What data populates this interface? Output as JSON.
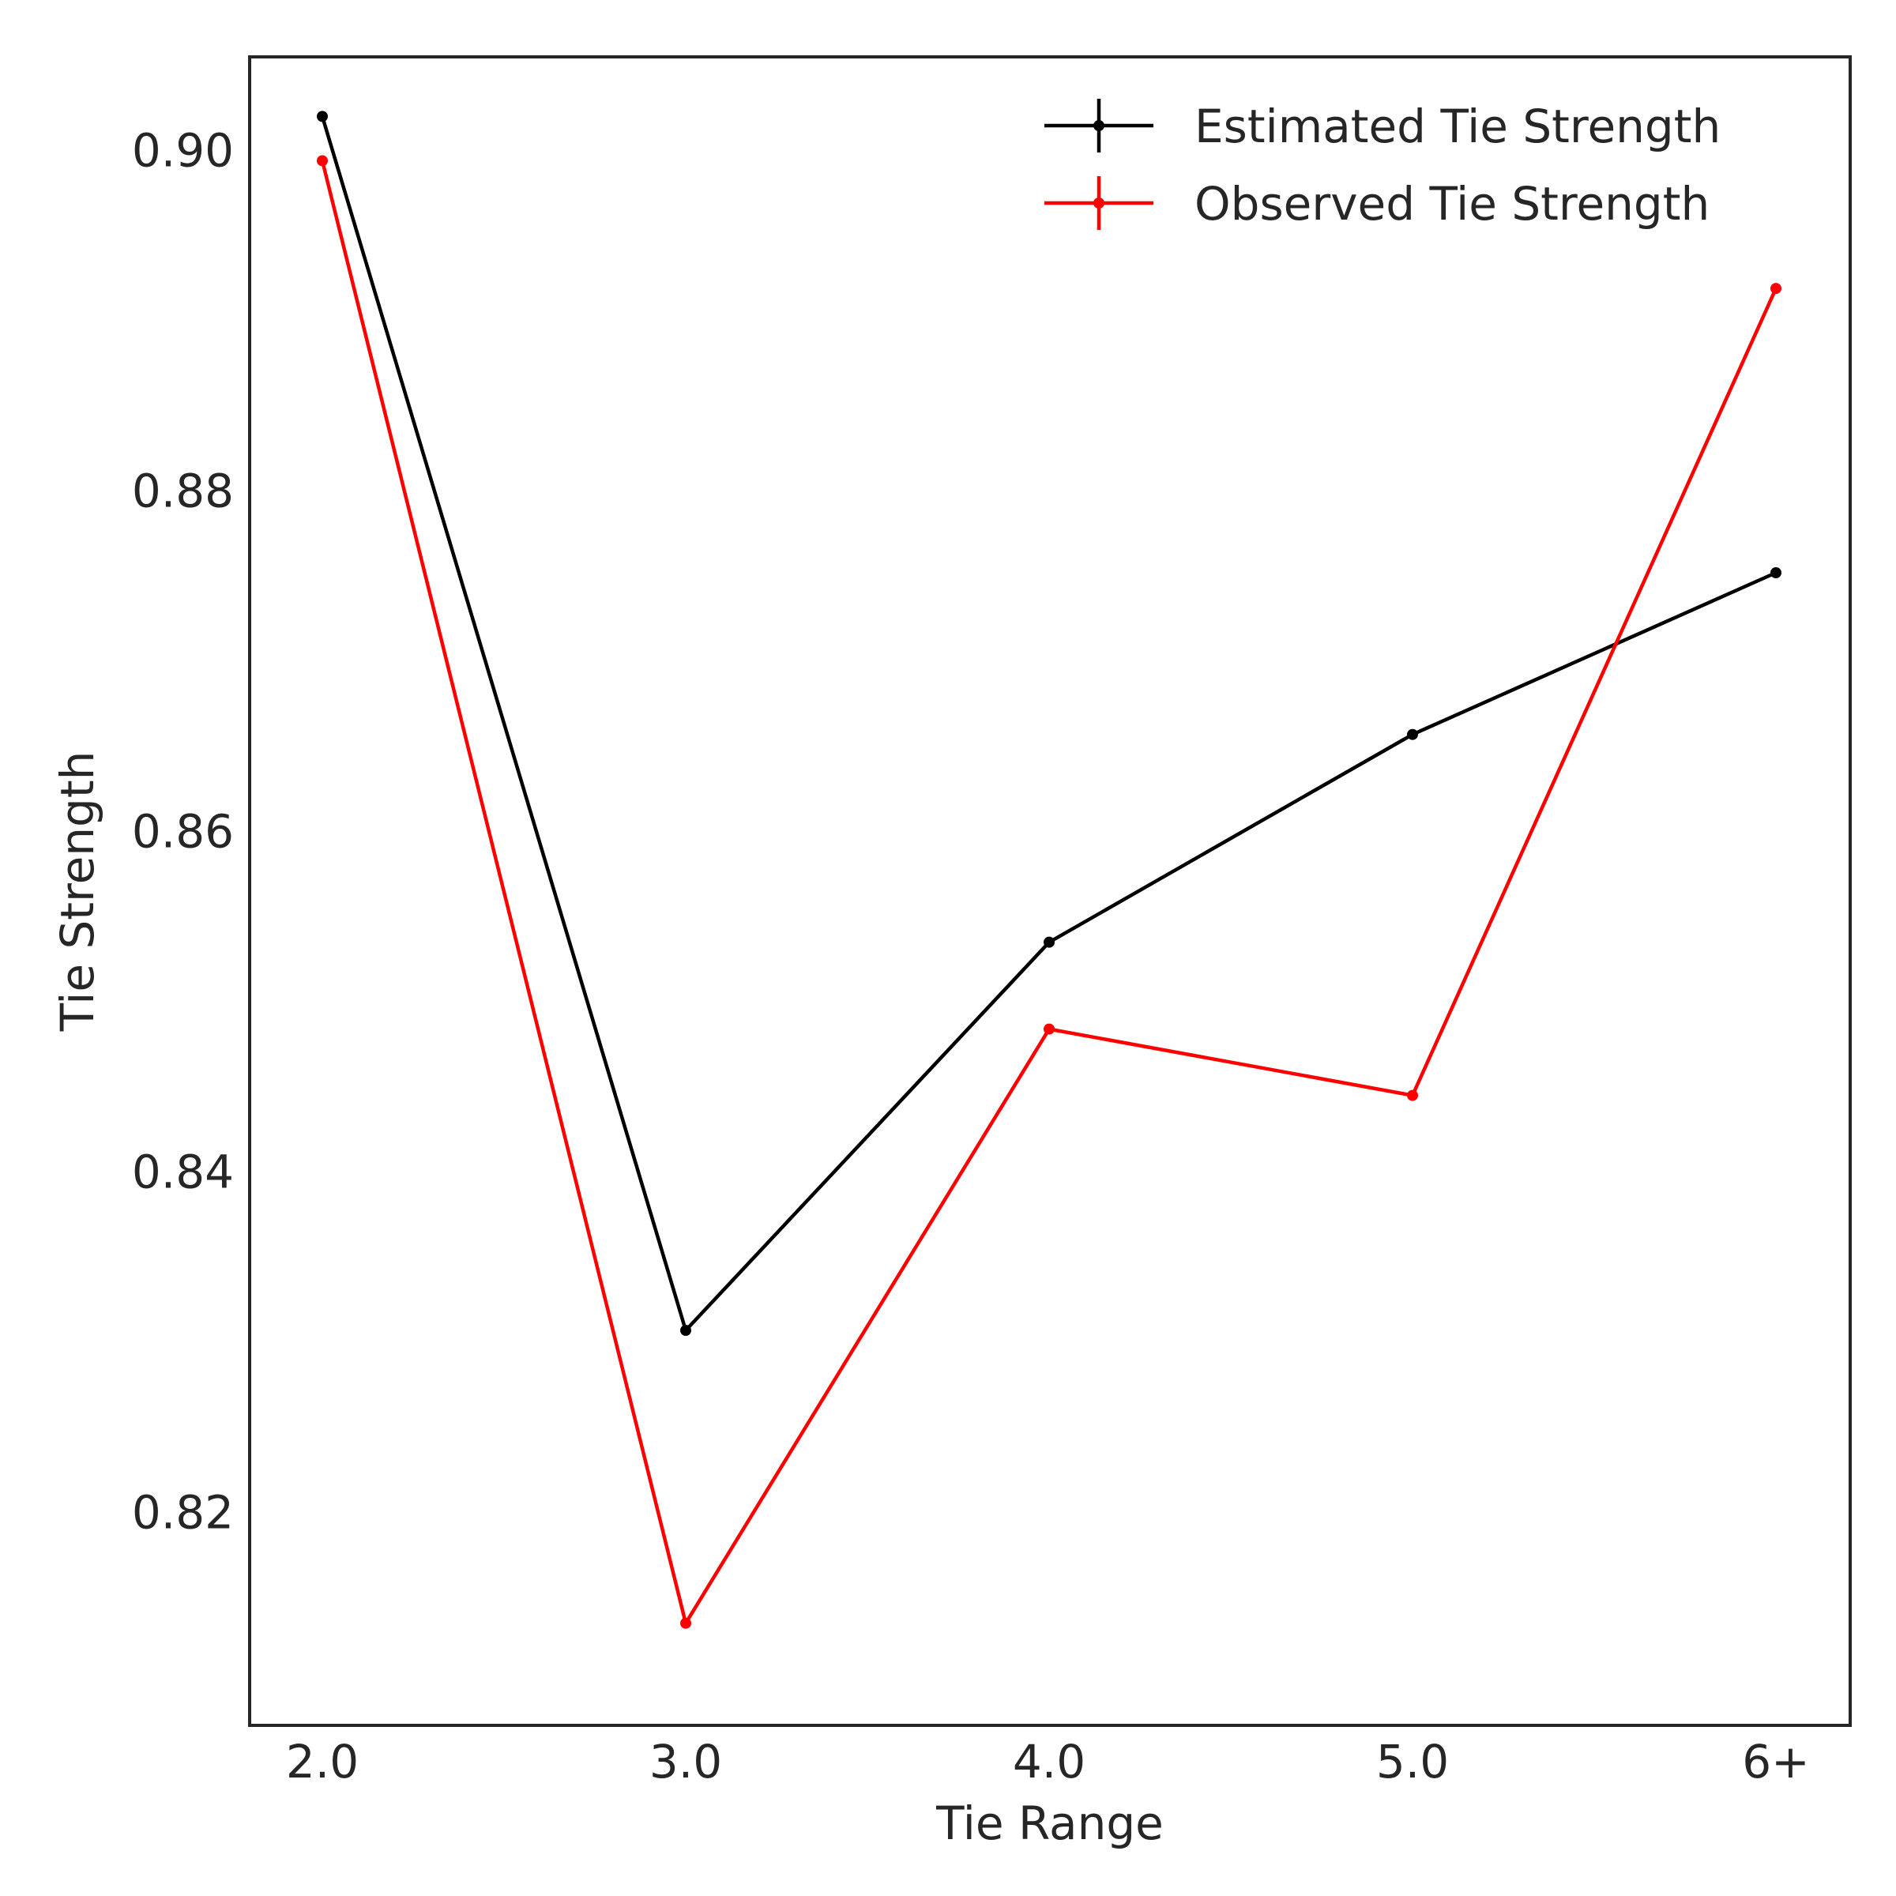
{
  "chart_data": {
    "type": "line",
    "title": "",
    "xlabel": "Tie Range",
    "ylabel": "Tie Strength",
    "categories": [
      "2.0",
      "3.0",
      "4.0",
      "5.0",
      "6+"
    ],
    "ylim": [
      0.8075,
      0.9055
    ],
    "yticks": [
      0.82,
      0.84,
      0.86,
      0.88,
      0.9
    ],
    "ytick_labels": [
      "0.82",
      "0.84",
      "0.86",
      "0.88",
      "0.90"
    ],
    "grid": false,
    "legend_position": "top-right",
    "series": [
      {
        "name": "Estimated Tie Strength",
        "color": "#000000",
        "values": [
          0.902,
          0.8307,
          0.8535,
          0.8657,
          0.8752
        ]
      },
      {
        "name": "Observed Tie Strength",
        "color": "#ff0000",
        "values": [
          0.8994,
          0.8135,
          0.8484,
          0.8445,
          0.8919
        ]
      }
    ]
  }
}
